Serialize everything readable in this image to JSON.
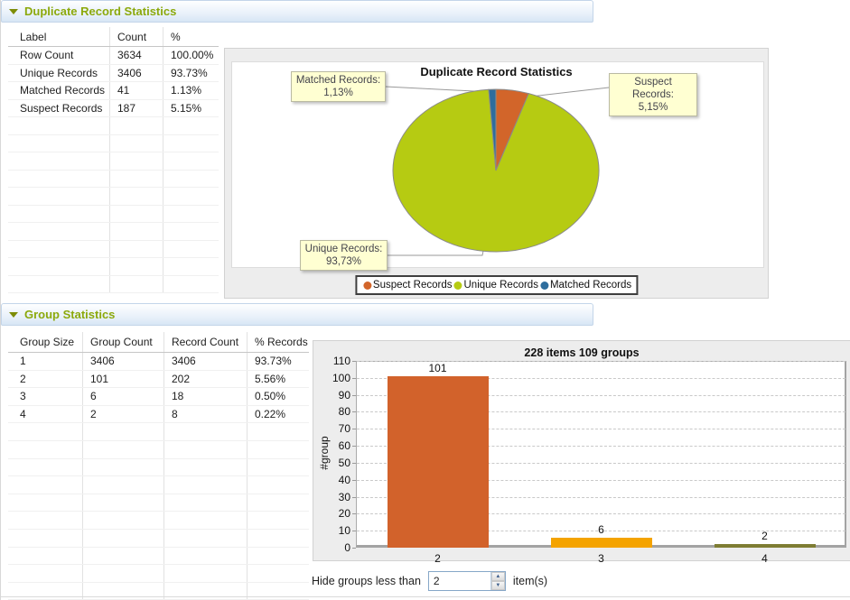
{
  "colors": {
    "pie_orange": "#d2652a",
    "pie_green": "#b6cb12",
    "pie_blue": "#2e6d9d",
    "bar_orange": "#d2622b",
    "bar_amber": "#f4a300",
    "bar_olive": "#7e7d33",
    "header_text": "#8ca90c"
  },
  "section_duplicate": {
    "header": "Duplicate Record Statistics",
    "table": {
      "columns": [
        "Label",
        "Count",
        "%"
      ],
      "rows": [
        [
          "Row Count",
          "3634",
          "100.00%"
        ],
        [
          "Unique Records",
          "3406",
          "93.73%"
        ],
        [
          "Matched Records",
          "41",
          "1.13%"
        ],
        [
          "Suspect Records",
          "187",
          "5.15%"
        ]
      ],
      "empty_rows": 10
    }
  },
  "section_group": {
    "header": "Group Statistics",
    "table": {
      "columns": [
        "Group Size",
        "Group Count",
        "Record Count",
        "% Records"
      ],
      "rows": [
        [
          "1",
          "3406",
          "3406",
          "93.73%"
        ],
        [
          "2",
          "101",
          "202",
          "5.56%"
        ],
        [
          "3",
          "6",
          "18",
          "0.50%"
        ],
        [
          "4",
          "2",
          "8",
          "0.22%"
        ]
      ],
      "empty_rows": 10
    },
    "hide_groups": {
      "label": "Hide groups less than",
      "value": "2",
      "suffix": "item(s)"
    }
  },
  "chart_data": [
    {
      "type": "pie",
      "title": "Duplicate Record Statistics",
      "slices": [
        {
          "name": "Suspect Records",
          "pct": 5.15,
          "color_key": "pie_orange",
          "callout_title": "Suspect Records:",
          "callout_value": "5,15%"
        },
        {
          "name": "Unique Records",
          "pct": 93.73,
          "color_key": "pie_green",
          "callout_title": "Unique Records:",
          "callout_value": "93,73%"
        },
        {
          "name": "Matched Records",
          "pct": 1.13,
          "color_key": "pie_blue",
          "callout_title": "Matched Records:",
          "callout_value": "1,13%"
        }
      ],
      "legend": [
        "Suspect Records",
        "Unique Records",
        "Matched Records"
      ],
      "legend_position": "bottom"
    },
    {
      "type": "bar",
      "title": "228 items 109 groups",
      "categories": [
        "2",
        "3",
        "4"
      ],
      "values": [
        101,
        6,
        2
      ],
      "color_keys": [
        "bar_orange",
        "bar_amber",
        "bar_olive"
      ],
      "ylabel": "#group",
      "ylim": [
        0,
        110
      ],
      "ytick_step": 10,
      "grid": "dashed-horizontal"
    }
  ]
}
